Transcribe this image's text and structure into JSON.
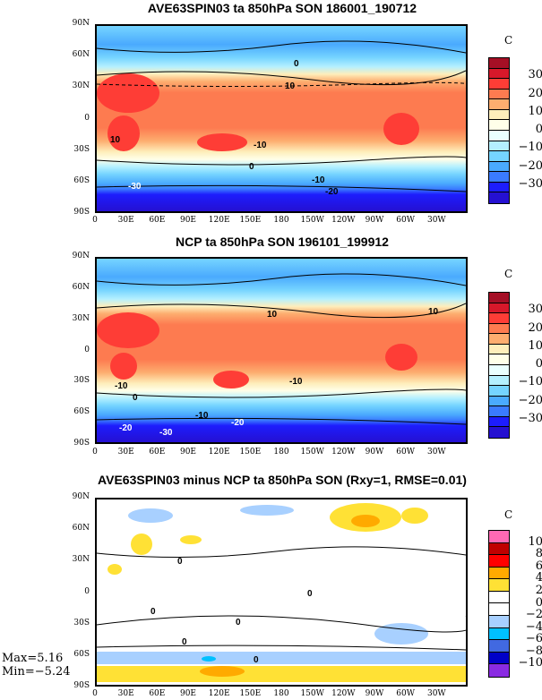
{
  "panels": [
    {
      "title": "AVE63SPIN03 ta 850hPa SON 186001_190712",
      "unit": "C",
      "colorbar": {
        "labels": [
          "30",
          "20",
          "10",
          "0",
          "−10",
          "−20",
          "−30"
        ],
        "colors": [
          "#a50f25",
          "#d7182a",
          "#fe3d36",
          "#fd7b50",
          "#fdad6f",
          "#feeebb",
          "#ffffe9",
          "#eaffff",
          "#b4f0ff",
          "#75d4ff",
          "#4aaafe",
          "#3a7bff",
          "#1d1dfd",
          "#2510d1"
        ]
      },
      "contour_labels": [
        "10",
        "0",
        "10",
        "-10",
        "0",
        "-10",
        "-30",
        "-20",
        "-20"
      ]
    },
    {
      "title": "NCP ta 850hPa SON 196101_199912",
      "unit": "C",
      "colorbar": {
        "labels": [
          "30",
          "20",
          "10",
          "0",
          "−10",
          "−20",
          "−30"
        ],
        "colors": [
          "#a50f25",
          "#d7182a",
          "#fe3d36",
          "#fd7b50",
          "#fdad6f",
          "#feeebb",
          "#ffffe9",
          "#eaffff",
          "#b4f0ff",
          "#75d4ff",
          "#4aaafe",
          "#3a7bff",
          "#1d1dfd",
          "#2510d1"
        ]
      },
      "contour_labels": [
        "10",
        "10",
        "-10",
        "-10",
        "0",
        "-10",
        "-20",
        "-30",
        "-20",
        "-30"
      ]
    },
    {
      "title": "AVE63SPIN03 minus NCP ta 850hPa SON (Rxy=1, RMSE=0.01)",
      "unit": "C",
      "colorbar": {
        "labels": [
          "10",
          "8",
          "6",
          "4",
          "2",
          "0",
          "−2",
          "−4",
          "−6",
          "−8",
          "−10"
        ],
        "colors": [
          "#ff69b4",
          "#c00000",
          "#ff0000",
          "#ffaa00",
          "#ffe135",
          "#ffffff",
          "#ffffff",
          "#a8d0ff",
          "#00c0ff",
          "#4169e1",
          "#0000c8",
          "#8a2be2"
        ]
      },
      "contour_labels": [
        "0",
        "0",
        "0",
        "0",
        "0",
        "0"
      ],
      "stats": {
        "max": "Max=5.16",
        "min": "Min=−5.24"
      }
    }
  ],
  "axes": {
    "lat_labels": [
      "90N",
      "60N",
      "30N",
      "0",
      "30S",
      "60S",
      "90S"
    ],
    "lon_labels": [
      "0",
      "30E",
      "60E",
      "90E",
      "120E",
      "150E",
      "180",
      "150W",
      "120W",
      "90W",
      "60W",
      "30W"
    ]
  }
}
